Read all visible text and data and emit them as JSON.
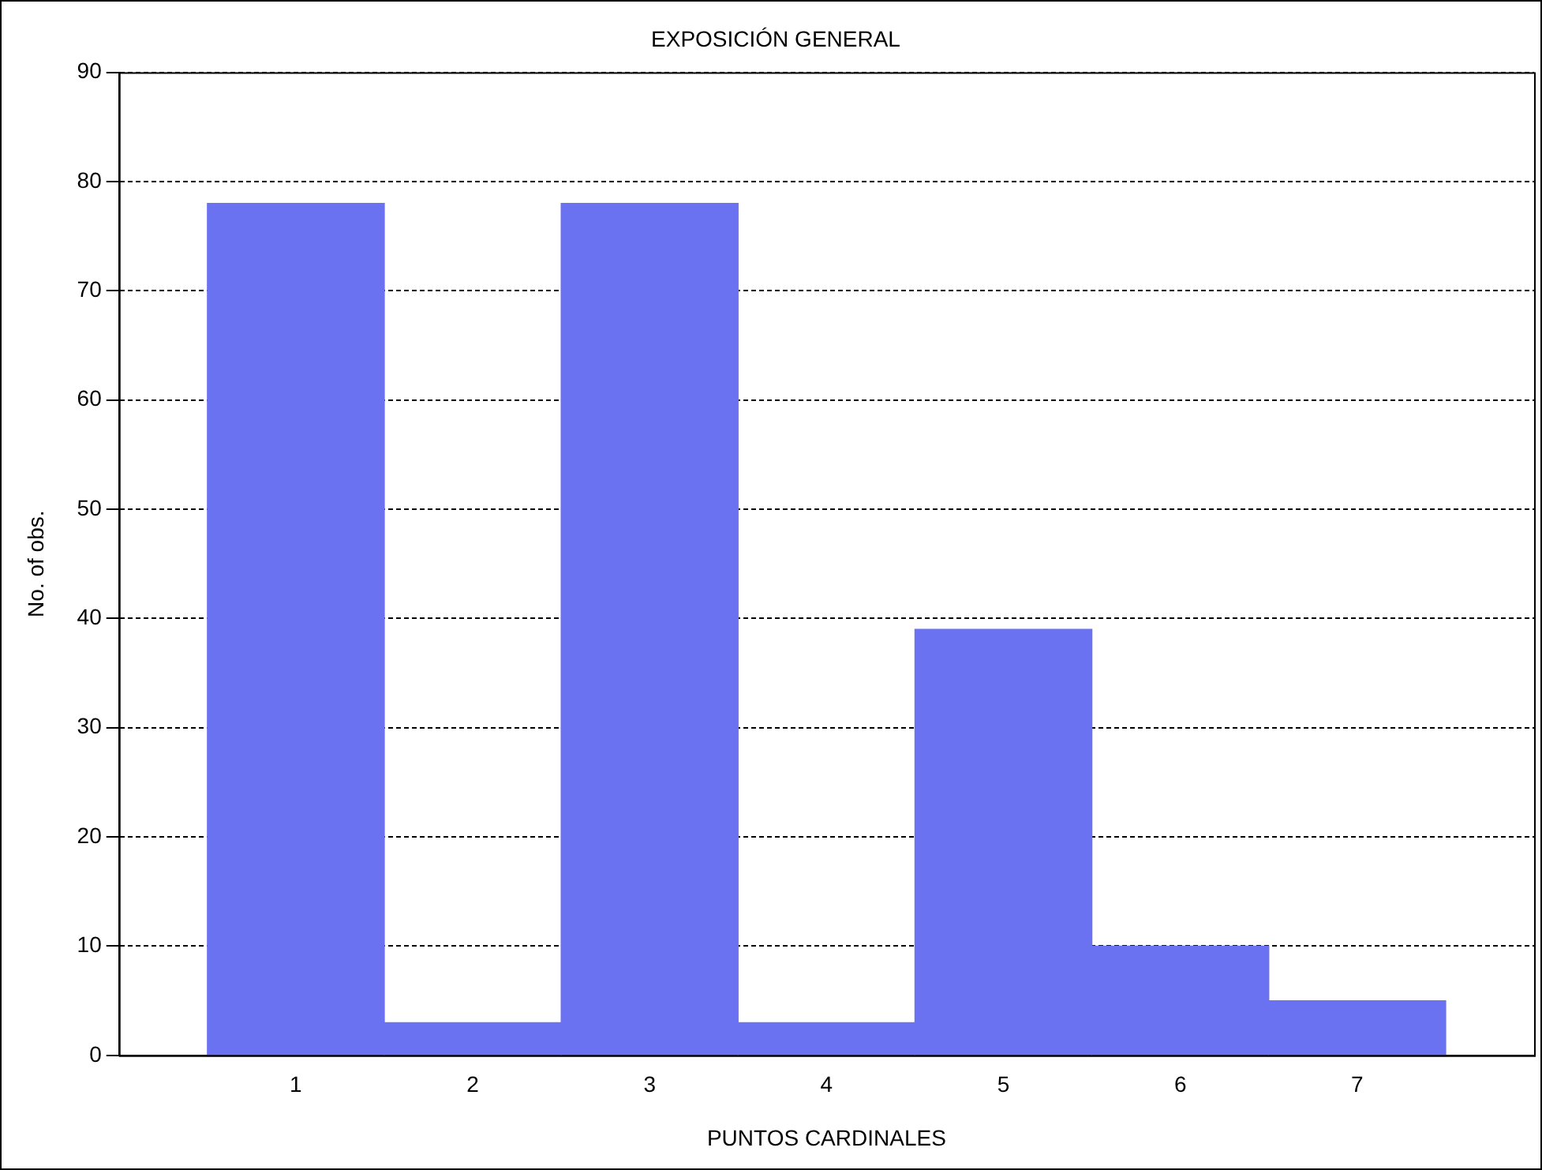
{
  "chart_data": {
    "type": "bar",
    "title": "EXPOSICIÓN GENERAL",
    "xlabel": "PUNTOS CARDINALES",
    "ylabel": "No. of obs.",
    "categories": [
      "1",
      "2",
      "3",
      "4",
      "5",
      "6",
      "7"
    ],
    "values": [
      78,
      3,
      78,
      3,
      39,
      10,
      5
    ],
    "color": "#6a72f2",
    "ylim": [
      0,
      90
    ],
    "yticks": [
      0,
      10,
      20,
      30,
      40,
      50,
      60,
      70,
      80,
      90
    ],
    "grid": "y",
    "legend": false
  }
}
